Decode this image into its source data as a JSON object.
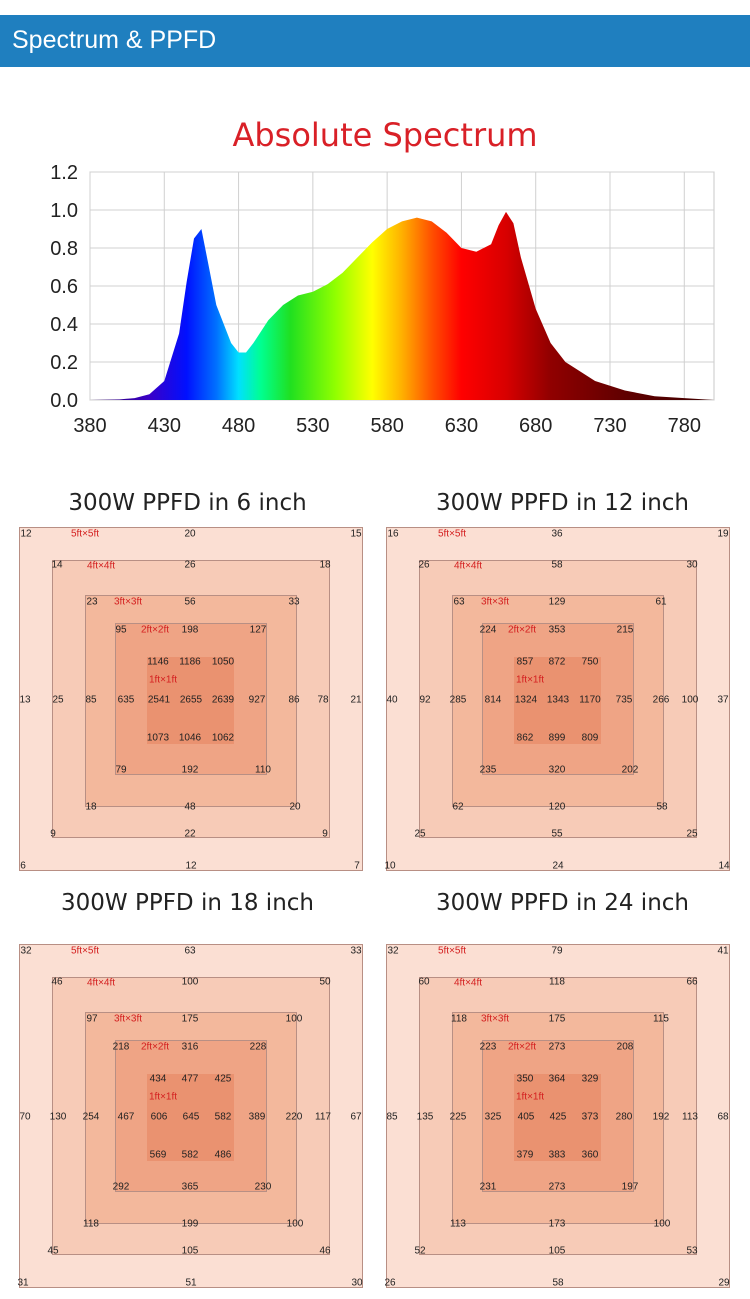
{
  "header": {
    "title": "Spectrum & PPFD"
  },
  "chart_data": {
    "type": "area",
    "title": "Absolute Spectrum",
    "xlabel": "",
    "ylabel": "",
    "xlim": [
      380,
      800
    ],
    "ylim": [
      0,
      1.2
    ],
    "xticks": [
      "380",
      "430",
      "480",
      "530",
      "580",
      "630",
      "680",
      "730",
      "780"
    ],
    "yticks": [
      "0.0",
      "0.2",
      "0.4",
      "0.6",
      "0.8",
      "1.0",
      "1.2"
    ],
    "grid": true,
    "x": [
      380,
      400,
      410,
      420,
      430,
      440,
      445,
      450,
      455,
      460,
      465,
      470,
      475,
      480,
      485,
      490,
      500,
      510,
      520,
      530,
      540,
      550,
      560,
      570,
      580,
      590,
      600,
      605,
      610,
      620,
      630,
      640,
      650,
      655,
      660,
      665,
      670,
      680,
      690,
      700,
      720,
      740,
      760,
      780,
      800
    ],
    "y": [
      0.0,
      0.003,
      0.01,
      0.03,
      0.1,
      0.35,
      0.62,
      0.85,
      0.9,
      0.7,
      0.5,
      0.4,
      0.3,
      0.25,
      0.25,
      0.3,
      0.42,
      0.5,
      0.55,
      0.57,
      0.61,
      0.67,
      0.75,
      0.83,
      0.9,
      0.94,
      0.96,
      0.95,
      0.94,
      0.88,
      0.8,
      0.78,
      0.82,
      0.92,
      0.99,
      0.93,
      0.75,
      0.48,
      0.3,
      0.2,
      0.1,
      0.05,
      0.02,
      0.01,
      0.0
    ]
  },
  "ppfd_labels": [
    "5ft×5ft",
    "4ft×4ft",
    "3ft×3ft",
    "2ft×2ft",
    "1ft×1ft"
  ],
  "ppfd_grids": [
    {
      "title": "300W PPFD in 6 inch",
      "values": {
        "r5t": [
          "12",
          "20",
          "15"
        ],
        "r4t": [
          "14",
          "26",
          "18"
        ],
        "r3t": [
          "23",
          "56",
          "33"
        ],
        "r2t": [
          "95",
          "198",
          "127"
        ],
        "r1t": [
          "1146",
          "1186",
          "1050"
        ],
        "mid": [
          "13",
          "25",
          "85",
          "635",
          "2541",
          "2655",
          "2639",
          "927",
          "86",
          "78",
          "21"
        ],
        "r1b": [
          "1073",
          "1046",
          "1062"
        ],
        "r2b": [
          "79",
          "192",
          "110"
        ],
        "r3b": [
          "18",
          "48",
          "20"
        ],
        "r4b": [
          "9",
          "22",
          "9"
        ],
        "r5b": [
          "6",
          "12",
          "7"
        ]
      }
    },
    {
      "title": "300W PPFD in 12 inch",
      "values": {
        "r5t": [
          "16",
          "36",
          "19"
        ],
        "r4t": [
          "26",
          "58",
          "30"
        ],
        "r3t": [
          "63",
          "129",
          "61"
        ],
        "r2t": [
          "224",
          "353",
          "215"
        ],
        "r1t": [
          "857",
          "872",
          "750"
        ],
        "mid": [
          "40",
          "92",
          "285",
          "814",
          "1324",
          "1343",
          "1170",
          "735",
          "266",
          "100",
          "37"
        ],
        "r1b": [
          "862",
          "899",
          "809"
        ],
        "r2b": [
          "235",
          "320",
          "202"
        ],
        "r3b": [
          "62",
          "120",
          "58"
        ],
        "r4b": [
          "25",
          "55",
          "25"
        ],
        "r5b": [
          "10",
          "24",
          "14"
        ]
      }
    },
    {
      "title": "300W PPFD in 18 inch",
      "values": {
        "r5t": [
          "32",
          "63",
          "33"
        ],
        "r4t": [
          "46",
          "100",
          "50"
        ],
        "r3t": [
          "97",
          "175",
          "100"
        ],
        "r2t": [
          "218",
          "316",
          "228"
        ],
        "r1t": [
          "434",
          "477",
          "425"
        ],
        "mid": [
          "70",
          "130",
          "254",
          "467",
          "606",
          "645",
          "582",
          "389",
          "220",
          "117",
          "67"
        ],
        "r1b": [
          "569",
          "582",
          "486"
        ],
        "r2b": [
          "292",
          "365",
          "230"
        ],
        "r3b": [
          "118",
          "199",
          "100"
        ],
        "r4b": [
          "45",
          "105",
          "46"
        ],
        "r5b": [
          "31",
          "51",
          "30"
        ]
      }
    },
    {
      "title": "300W PPFD in 24 inch",
      "values": {
        "r5t": [
          "32",
          "79",
          "41"
        ],
        "r4t": [
          "60",
          "118",
          "66"
        ],
        "r3t": [
          "118",
          "175",
          "115"
        ],
        "r2t": [
          "223",
          "273",
          "208"
        ],
        "r1t": [
          "350",
          "364",
          "329"
        ],
        "mid": [
          "85",
          "135",
          "225",
          "325",
          "405",
          "425",
          "373",
          "280",
          "192",
          "113",
          "68"
        ],
        "r1b": [
          "379",
          "383",
          "360"
        ],
        "r2b": [
          "231",
          "273",
          "197"
        ],
        "r3b": [
          "113",
          "173",
          "100"
        ],
        "r4b": [
          "52",
          "105",
          "53"
        ],
        "r5b": [
          "26",
          "58",
          "29"
        ]
      }
    }
  ]
}
